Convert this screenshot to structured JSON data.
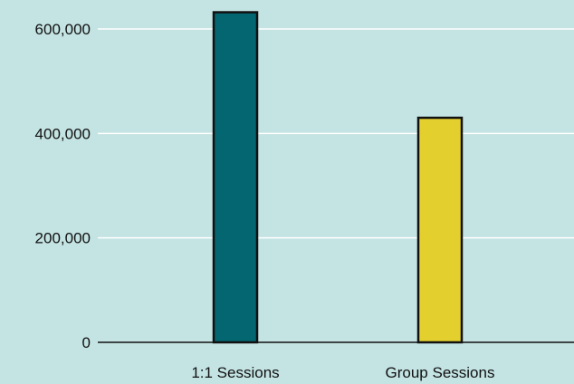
{
  "chart_data": {
    "type": "bar",
    "categories": [
      "1:1 Sessions",
      "Group Sessions"
    ],
    "values": [
      632000,
      430000
    ],
    "ylim": [
      0,
      640000
    ],
    "yticks": [
      0,
      200000,
      400000,
      600000
    ],
    "ytick_labels": [
      "0",
      "200,000",
      "400,000",
      "600,000"
    ],
    "grid": true,
    "colors": {
      "background": "#c4e3e3",
      "bars": [
        "#036670",
        "#e3cf2e"
      ],
      "bar_outline": "#111111",
      "gridline": "#ffffff",
      "axis": "#111111",
      "text": "#111111"
    }
  }
}
